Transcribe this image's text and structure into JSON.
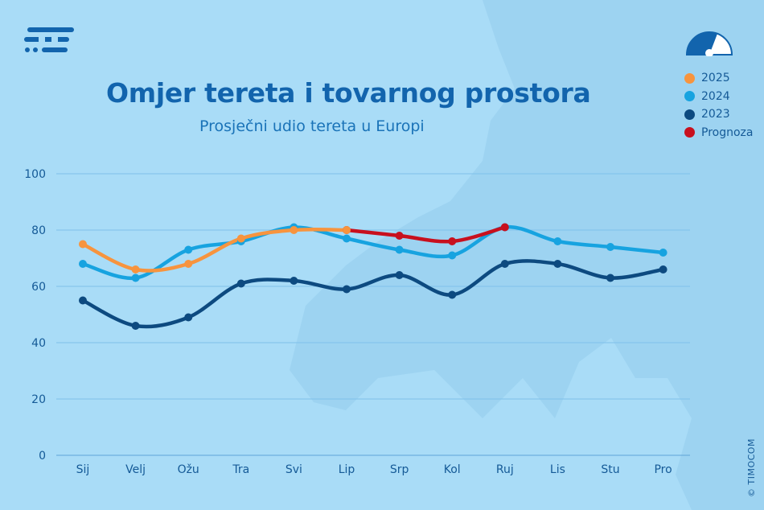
{
  "title": "Omjer tereta i tovarnog prostora",
  "subtitle": "Prosječni udio tereta u Europi",
  "copyright": "© TIMOCOM",
  "icons": {
    "logo": "timocom-logo-icon",
    "gauge": "gauge-meter-icon"
  },
  "chart_data": {
    "type": "line",
    "categories": [
      "Sij",
      "Velj",
      "Ožu",
      "Tra",
      "Svi",
      "Lip",
      "Srp",
      "Kol",
      "Ruj",
      "Lis",
      "Stu",
      "Pro"
    ],
    "ylim": [
      0,
      100
    ],
    "yticks": [
      0,
      20,
      40,
      60,
      80,
      100
    ],
    "grid": true,
    "legend_position": "top-right",
    "series": [
      {
        "name": "2023",
        "color": "#0d4a80",
        "values": [
          55,
          46,
          49,
          61,
          62,
          59,
          64,
          57,
          68,
          68,
          63,
          66
        ]
      },
      {
        "name": "2024",
        "color": "#17a3e0",
        "values": [
          68,
          63,
          73,
          76,
          81,
          77,
          73,
          71,
          81,
          76,
          74,
          72
        ]
      },
      {
        "name": "Prognoza",
        "color": "#c8101e",
        "values": [
          null,
          null,
          null,
          null,
          null,
          80,
          78,
          76,
          81,
          null,
          null,
          null
        ]
      },
      {
        "name": "2025",
        "color": "#f7943e",
        "values": [
          75,
          66,
          68,
          77,
          80,
          80,
          null,
          null,
          null,
          null,
          null,
          null
        ]
      }
    ],
    "legend": [
      {
        "name": "2025",
        "color": "#f7943e"
      },
      {
        "name": "2024",
        "color": "#17a3e0"
      },
      {
        "name": "2023",
        "color": "#0d4a80"
      },
      {
        "name": "Prognoza",
        "color": "#c8101e"
      }
    ]
  }
}
